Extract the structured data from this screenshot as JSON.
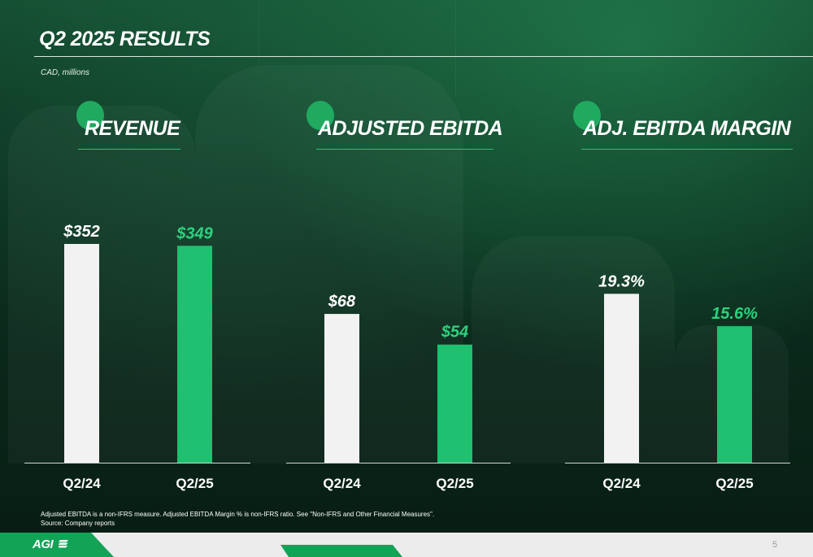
{
  "slide": {
    "title": "Q2 2025 RESULTS",
    "unit_note": "CAD, millions",
    "footnote_line1": "Adjusted EBITDA is a non-IFRS measure. Adjusted EBITDA Margin % is non-IFRS ratio. See \"Non-IFRS and Other Financial Measures\".",
    "footnote_line2": "Source: Company reports",
    "logo_text": "AGI",
    "page_number": "5"
  },
  "colors": {
    "accent_green": "#1fc06f",
    "prior_bar": "#f2f2f2",
    "current_label": "#2fd07f",
    "prior_label": "#ffffff"
  },
  "chart_data": [
    {
      "type": "bar",
      "title": "REVENUE",
      "categories": [
        "Q2/24",
        "Q2/25"
      ],
      "values": [
        352,
        349
      ],
      "labels": [
        "$352",
        "$349"
      ],
      "ylim": [
        0,
        352
      ]
    },
    {
      "type": "bar",
      "title": "ADJUSTED EBITDA",
      "categories": [
        "Q2/24",
        "Q2/25"
      ],
      "values": [
        68,
        54
      ],
      "labels": [
        "$68",
        "$54"
      ],
      "ylim": [
        0,
        100
      ]
    },
    {
      "type": "bar",
      "title": "ADJ. EBITDA MARGIN",
      "categories": [
        "Q2/24",
        "Q2/25"
      ],
      "values": [
        19.3,
        15.6
      ],
      "labels": [
        "19.3%",
        "15.6%"
      ],
      "ylim": [
        0,
        25
      ]
    }
  ]
}
